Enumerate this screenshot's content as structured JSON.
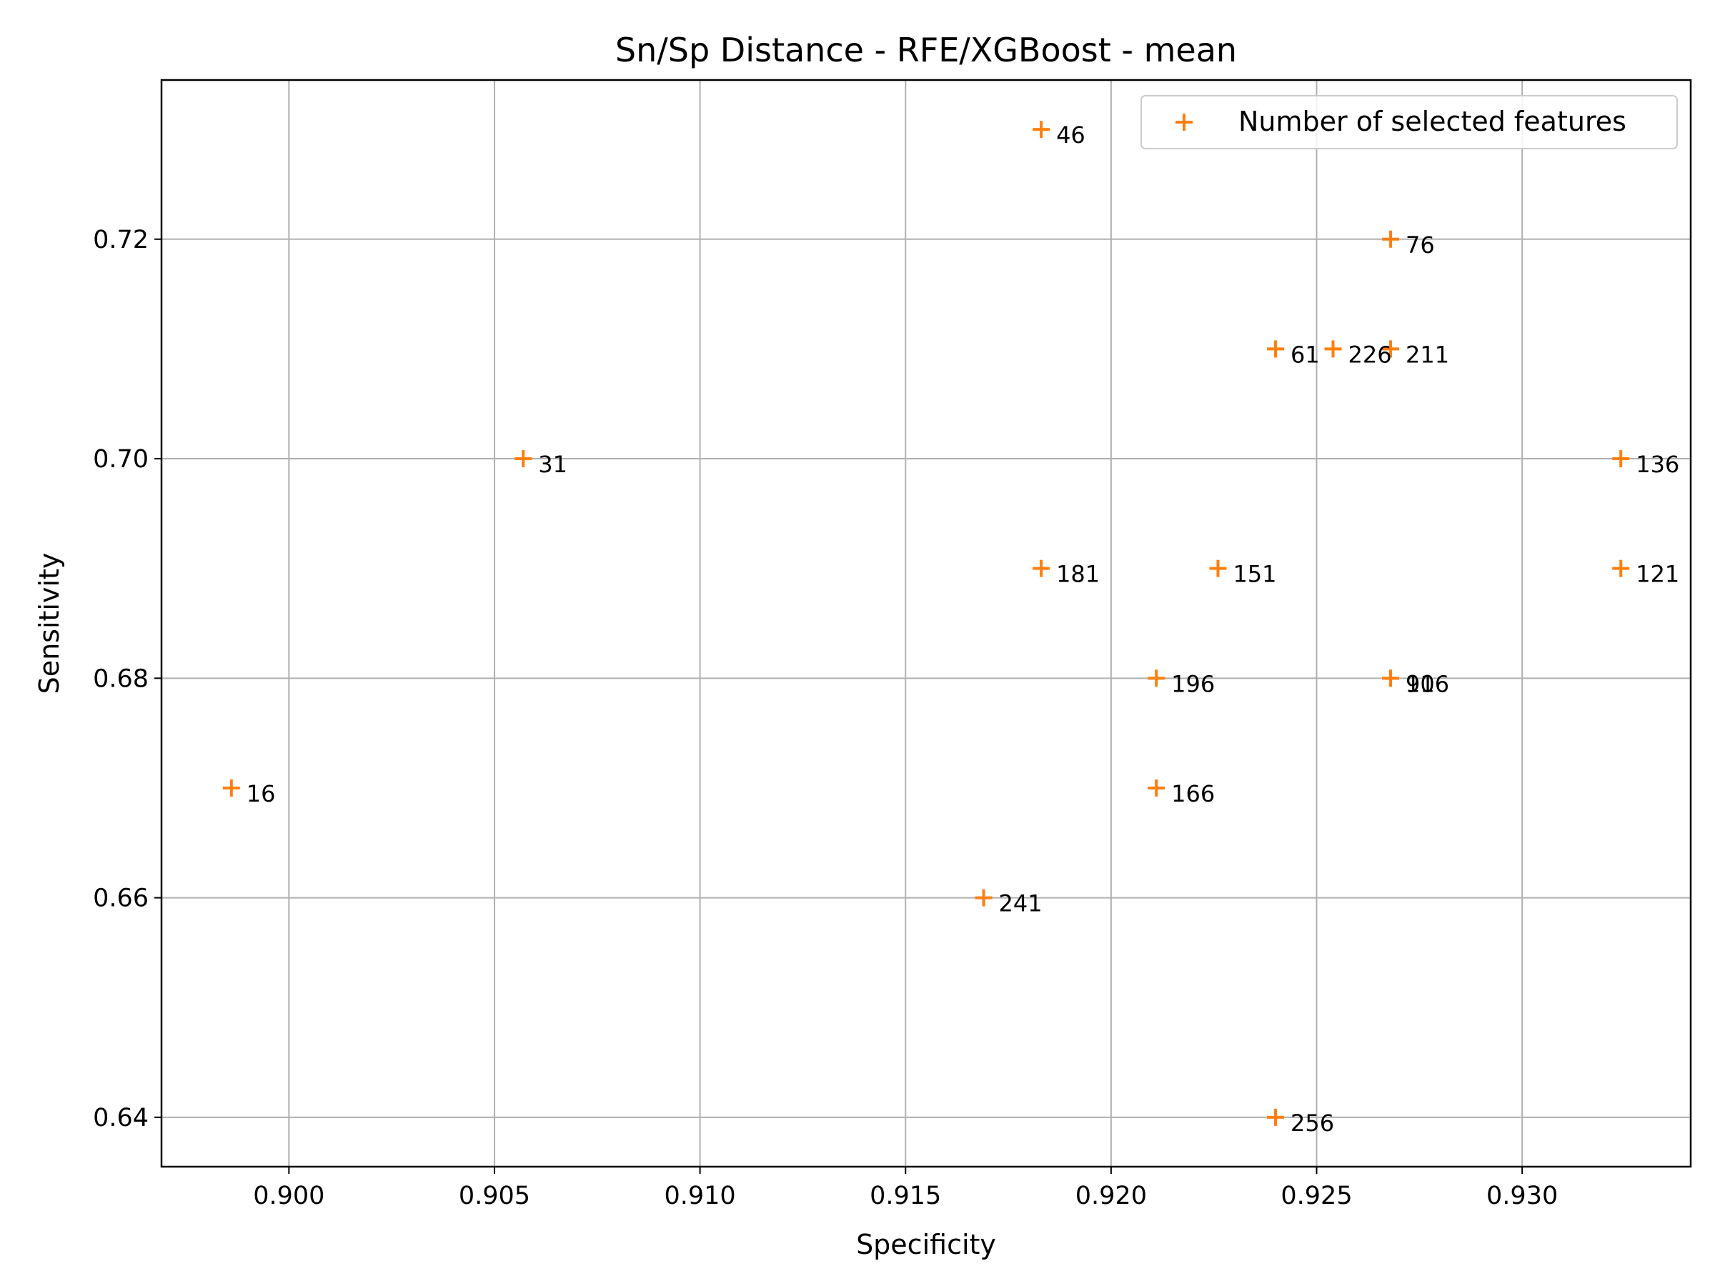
{
  "chart_data": {
    "type": "scatter",
    "title": "Sn/Sp Distance - RFE/XGBoost - mean",
    "xlabel": "Specificity",
    "ylabel": "Sensitivity",
    "xlim": [
      0.8969,
      0.9341
    ],
    "ylim": [
      0.6355,
      0.7345
    ],
    "xticks": [
      0.9,
      0.905,
      0.91,
      0.915,
      0.92,
      0.925,
      0.93
    ],
    "xtick_labels": [
      "0.900",
      "0.905",
      "0.910",
      "0.915",
      "0.920",
      "0.925",
      "0.930"
    ],
    "yticks": [
      0.64,
      0.66,
      0.68,
      0.7,
      0.72
    ],
    "ytick_labels": [
      "0.64",
      "0.66",
      "0.68",
      "0.70",
      "0.72"
    ],
    "grid": true,
    "legend_position": "top-right",
    "marker_color": "#ff7f0e",
    "series": [
      {
        "name": "Number of selected features",
        "points": [
          {
            "x": 0.8986,
            "y": 0.67,
            "label": "16"
          },
          {
            "x": 0.9057,
            "y": 0.7,
            "label": "31"
          },
          {
            "x": 0.9183,
            "y": 0.73,
            "label": "46"
          },
          {
            "x": 0.924,
            "y": 0.71,
            "label": "61"
          },
          {
            "x": 0.9268,
            "y": 0.72,
            "label": "76"
          },
          {
            "x": 0.9268,
            "y": 0.68,
            "label": "91"
          },
          {
            "x": 0.9268,
            "y": 0.68,
            "label": "106"
          },
          {
            "x": 0.9324,
            "y": 0.69,
            "label": "121"
          },
          {
            "x": 0.9324,
            "y": 0.7,
            "label": "136"
          },
          {
            "x": 0.9226,
            "y": 0.69,
            "label": "151"
          },
          {
            "x": 0.9211,
            "y": 0.67,
            "label": "166"
          },
          {
            "x": 0.9183,
            "y": 0.69,
            "label": "181"
          },
          {
            "x": 0.9211,
            "y": 0.68,
            "label": "196"
          },
          {
            "x": 0.9268,
            "y": 0.71,
            "label": "211"
          },
          {
            "x": 0.9254,
            "y": 0.71,
            "label": "226"
          },
          {
            "x": 0.9169,
            "y": 0.66,
            "label": "241"
          },
          {
            "x": 0.924,
            "y": 0.64,
            "label": "256"
          }
        ]
      }
    ]
  }
}
